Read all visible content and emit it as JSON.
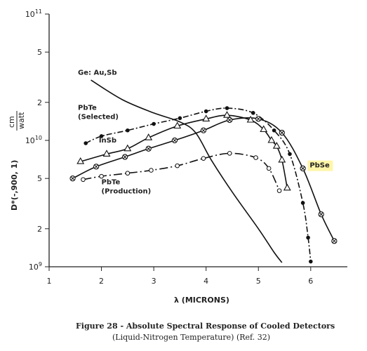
{
  "chart_data": {
    "type": "line",
    "xlabel": "λ (MICRONS)",
    "ylabel": "D*(-,900, 1)",
    "ylabel_unit_numerator": "cm",
    "ylabel_unit_denominator": "watt",
    "xlim": [
      1,
      6.7
    ],
    "ylim": [
      1000000000.0,
      100000000000.0
    ],
    "y_scale": "log",
    "x_ticks": [
      1,
      2,
      3,
      4,
      5,
      6
    ],
    "x_tick_labels": [
      "1",
      "2",
      "3",
      "4",
      "5",
      "6"
    ],
    "y_ticks": [
      1000000000.0,
      2000000000.0,
      5000000000.0,
      10000000000.0,
      20000000000.0,
      50000000000.0,
      100000000000.0
    ],
    "y_tick_labels": [
      {
        "base": "10",
        "exp": "9"
      },
      {
        "base": "2",
        "exp": ""
      },
      {
        "base": "5",
        "exp": ""
      },
      {
        "base": "10",
        "exp": "10"
      },
      {
        "base": "2",
        "exp": ""
      },
      {
        "base": "5",
        "exp": ""
      },
      {
        "base": "10",
        "exp": "11"
      }
    ],
    "grid": false,
    "series": [
      {
        "name": "Ge: Au,Sb",
        "label_lines": [
          "Ge: Au,Sb"
        ],
        "marker": "none",
        "dash": "solid",
        "x": [
          1.8,
          2.4,
          3.0,
          3.5,
          3.8,
          4.1,
          4.5,
          5.0,
          5.3,
          5.45
        ],
        "y": [
          30000000000.0,
          21000000000.0,
          16500000000.0,
          14000000000.0,
          11500000000.0,
          7000000000.0,
          3900000000.0,
          2000000000.0,
          1300000000.0,
          1080000000.0
        ]
      },
      {
        "name": "PbTe (Selected)",
        "label_lines": [
          "PbTe",
          "(Selected)"
        ],
        "marker": "filled-circle",
        "dash": "dash-dot",
        "x": [
          1.7,
          2.0,
          2.5,
          3.0,
          3.5,
          4.0,
          4.4,
          4.9,
          5.3,
          5.6,
          5.85,
          5.95,
          6.0
        ],
        "y": [
          9500000000.0,
          10800000000.0,
          12000000000.0,
          13500000000.0,
          15000000000.0,
          17000000000.0,
          18000000000.0,
          16500000000.0,
          12000000000.0,
          7800000000.0,
          3200000000.0,
          1700000000.0,
          1100000000.0
        ]
      },
      {
        "name": "InSb",
        "label_lines": [
          "InSb"
        ],
        "marker": "open-triangle",
        "dash": "solid",
        "x": [
          1.6,
          2.1,
          2.5,
          2.9,
          3.45,
          4.0,
          4.4,
          4.85,
          5.1,
          5.25,
          5.35,
          5.45,
          5.55
        ],
        "y": [
          6800000000.0,
          7800000000.0,
          8600000000.0,
          10500000000.0,
          13000000000.0,
          14800000000.0,
          15800000000.0,
          14500000000.0,
          12200000000.0,
          10000000000.0,
          9000000000.0,
          7000000000.0,
          4200000000.0
        ]
      },
      {
        "name": "PbSe",
        "label_lines": [
          "PbSe"
        ],
        "marker": "circle-x",
        "dash": "solid",
        "x": [
          1.45,
          1.9,
          2.45,
          2.9,
          3.4,
          3.95,
          4.45,
          5.0,
          5.45,
          5.85,
          6.2,
          6.45
        ],
        "y": [
          5000000000.0,
          6200000000.0,
          7400000000.0,
          8600000000.0,
          10000000000.0,
          12000000000.0,
          14500000000.0,
          14800000000.0,
          11500000000.0,
          6000000000.0,
          2600000000.0,
          1600000000.0
        ]
      },
      {
        "name": "PbTe (Production)",
        "label_lines": [
          "PbTe",
          "(Production)"
        ],
        "marker": "open-circle",
        "dash": "long-dash-dot",
        "x": [
          1.65,
          2.0,
          2.5,
          2.95,
          3.45,
          3.95,
          4.45,
          4.95,
          5.2,
          5.4
        ],
        "y": [
          4900000000.0,
          5200000000.0,
          5500000000.0,
          5800000000.0,
          6300000000.0,
          7200000000.0,
          7900000000.0,
          7300000000.0,
          6000000000.0,
          4000000000.0
        ]
      }
    ]
  },
  "caption": {
    "line1": "Figure 28 - Absolute Spectral Response of Cooled Detectors",
    "line2": "(Liquid-Nitrogen Temperature) (Ref. 32)"
  }
}
